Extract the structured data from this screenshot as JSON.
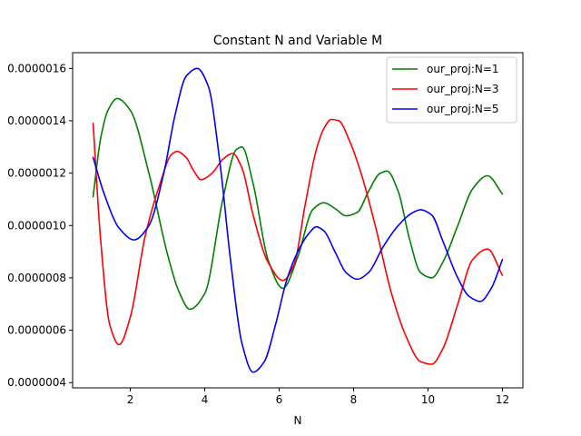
{
  "chart_data": {
    "type": "line",
    "title": "Constant N and Variable M",
    "xlabel": "N",
    "ylabel": "",
    "xlim": [
      0.45,
      12.55
    ],
    "ylim": [
      3.8e-07,
      1.66e-06
    ],
    "x_ticks": [
      2,
      4,
      6,
      8,
      10,
      12
    ],
    "x_tick_labels": [
      "2",
      "4",
      "6",
      "8",
      "10",
      "12"
    ],
    "y_ticks": [
      4e-07,
      6e-07,
      8e-07,
      1e-06,
      1.2e-06,
      1.4e-06,
      1.6e-06
    ],
    "y_tick_labels": [
      "0.0000004",
      "0.0000006",
      "0.0000008",
      "0.0000010",
      "0.0000012",
      "0.0000014",
      "0.0000016"
    ],
    "grid": false,
    "legend_position": "top-right",
    "series": [
      {
        "name": "our_proj:N=1",
        "color": "#008000",
        "x": [
          1.0,
          1.2,
          1.4,
          1.65,
          2.0,
          2.5,
          3.0,
          3.3,
          3.6,
          4.0,
          4.5,
          4.85,
          5.0,
          5.3,
          5.7,
          6.1,
          6.5,
          6.9,
          7.2,
          7.5,
          7.8,
          8.1,
          8.4,
          8.7,
          8.9,
          9.2,
          9.5,
          9.8,
          10.1,
          10.4,
          10.8,
          11.2,
          11.6,
          12.0
        ],
        "y": [
          1.11e-06,
          1.33e-06,
          1.44e-06,
          1.485e-06,
          1.44e-06,
          1.2e-06,
          8.9e-07,
          7.5e-07,
          6.8e-07,
          7.4e-07,
          1.11e-06,
          1.29e-06,
          1.3e-06,
          1.16e-06,
          8.7e-07,
          7.6e-07,
          8.8e-07,
          1.06e-06,
          1.087e-06,
          1.065e-06,
          1.037e-06,
          1.05e-06,
          1.13e-06,
          1.198e-06,
          1.208e-06,
          1.13e-06,
          9.5e-07,
          8.2e-07,
          8e-07,
          8.6e-07,
          1e-06,
          1.14e-06,
          1.19e-06,
          1.12e-06
        ]
      },
      {
        "name": "our_proj:N=3",
        "color": "#ff0000",
        "x": [
          1.0,
          1.2,
          1.45,
          1.7,
          2.0,
          2.4,
          2.8,
          3.1,
          3.25,
          3.5,
          3.7,
          3.9,
          4.2,
          4.5,
          4.75,
          5.0,
          5.3,
          5.7,
          6.1,
          6.4,
          6.7,
          7.0,
          7.2,
          7.4,
          7.6,
          7.9,
          8.2,
          8.6,
          9.0,
          9.4,
          9.8,
          10.1,
          10.4,
          10.8,
          11.2,
          11.6,
          12.0
        ],
        "y": [
          1.39e-06,
          9.5e-07,
          6.2e-07,
          5.45e-07,
          6.5e-07,
          9.6e-07,
          1.16e-06,
          1.27e-06,
          1.283e-06,
          1.26e-06,
          1.21e-06,
          1.175e-06,
          1.2e-06,
          1.255e-06,
          1.275e-06,
          1.22e-06,
          1.04e-06,
          8.6e-07,
          7.9e-07,
          8.5e-07,
          1.08e-06,
          1.29e-06,
          1.37e-06,
          1.405e-06,
          1.4e-06,
          1.32e-06,
          1.2e-06,
          9.9e-07,
          7.5e-07,
          5.8e-07,
          4.8e-07,
          4.7e-07,
          5.3e-07,
          7e-07,
          8.7e-07,
          9.1e-07,
          8.1e-07
        ]
      },
      {
        "name": "our_proj:N=5",
        "color": "#0000ff",
        "x": [
          1.0,
          1.3,
          1.7,
          2.1,
          2.5,
          2.9,
          3.2,
          3.5,
          3.8,
          4.1,
          4.4,
          4.7,
          5.0,
          5.3,
          5.6,
          5.9,
          6.2,
          6.5,
          6.8,
          7.0,
          7.2,
          7.5,
          7.8,
          8.1,
          8.4,
          8.8,
          9.2,
          9.6,
          9.8,
          10.1,
          10.4,
          10.8,
          11.1,
          11.4,
          11.7,
          12.0
        ],
        "y": [
          1.26e-06,
          1.12e-06,
          9.9e-07,
          9.45e-07,
          1e-06,
          1.2e-06,
          1.42e-06,
          1.57e-06,
          1.6e-06,
          1.53e-06,
          1.25e-06,
          8.6e-07,
          5.5e-07,
          4.4e-07,
          4.8e-07,
          6.2e-07,
          7.9e-07,
          9e-07,
          9.7e-07,
          9.95e-07,
          9.8e-07,
          9e-07,
          8.2e-07,
          7.95e-07,
          8.2e-07,
          9.2e-07,
          1e-06,
          1.05e-06,
          1.06e-06,
          1.04e-06,
          9.4e-07,
          8e-07,
          7.3e-07,
          7.1e-07,
          7.6e-07,
          8.7e-07
        ]
      }
    ]
  }
}
